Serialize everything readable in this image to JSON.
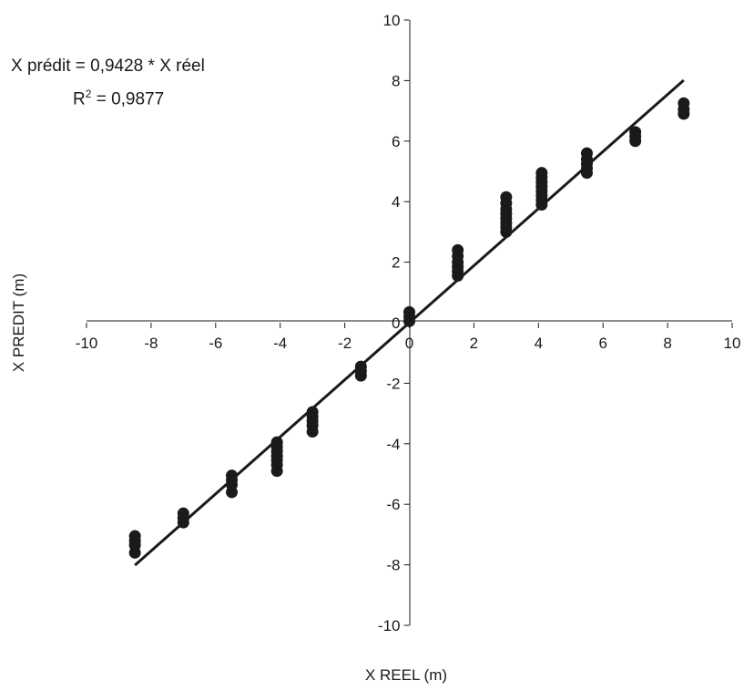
{
  "chart_data": {
    "type": "scatter",
    "xlabel": "X REEL (m)",
    "ylabel": "X PREDIT (m)",
    "xlim": [
      -10,
      10
    ],
    "ylim": [
      -10,
      10
    ],
    "x_ticks": [
      "-10",
      "-8",
      "-6",
      "-4",
      "-2",
      "0",
      "2",
      "4",
      "6",
      "8",
      "10"
    ],
    "y_ticks": [
      "10",
      "8",
      "6",
      "4",
      "2",
      "0",
      "-2",
      "-4",
      "-6",
      "-8",
      "-10"
    ],
    "grid": false,
    "annotations": {
      "equation": "X prédit = 0,9428 * X réel",
      "r2_label": "R",
      "r2_exponent": "2",
      "r2_value": " = 0,9877"
    },
    "trendline": {
      "slope": 0.9428,
      "intercept": 0,
      "x_range": [
        -8.5,
        8.5
      ]
    },
    "marker_color": "#1a1a1a",
    "points": [
      [
        -8.5,
        -7.05
      ],
      [
        -8.5,
        -7.2
      ],
      [
        -8.5,
        -7.35
      ],
      [
        -8.5,
        -7.6
      ],
      [
        -7.0,
        -6.3
      ],
      [
        -7.0,
        -6.45
      ],
      [
        -7.0,
        -6.6
      ],
      [
        -5.5,
        -5.05
      ],
      [
        -5.5,
        -5.2
      ],
      [
        -5.5,
        -5.35
      ],
      [
        -5.5,
        -5.6
      ],
      [
        -4.1,
        -3.95
      ],
      [
        -4.1,
        -4.1
      ],
      [
        -4.1,
        -4.25
      ],
      [
        -4.1,
        -4.4
      ],
      [
        -4.1,
        -4.55
      ],
      [
        -4.1,
        -4.7
      ],
      [
        -4.1,
        -4.9
      ],
      [
        -3.0,
        -2.95
      ],
      [
        -3.0,
        -3.1
      ],
      [
        -3.0,
        -3.25
      ],
      [
        -3.0,
        -3.4
      ],
      [
        -3.0,
        -3.6
      ],
      [
        -1.5,
        -1.45
      ],
      [
        -1.5,
        -1.6
      ],
      [
        -1.5,
        -1.75
      ],
      [
        0.0,
        0.35
      ],
      [
        0.0,
        0.2
      ],
      [
        0.0,
        0.05
      ],
      [
        1.5,
        1.55
      ],
      [
        1.5,
        1.7
      ],
      [
        1.5,
        1.85
      ],
      [
        1.5,
        2.0
      ],
      [
        1.5,
        2.2
      ],
      [
        1.5,
        2.4
      ],
      [
        3.0,
        3.0
      ],
      [
        3.0,
        3.15
      ],
      [
        3.0,
        3.3
      ],
      [
        3.0,
        3.45
      ],
      [
        3.0,
        3.6
      ],
      [
        3.0,
        3.75
      ],
      [
        3.0,
        3.95
      ],
      [
        3.0,
        4.15
      ],
      [
        4.1,
        3.9
      ],
      [
        4.1,
        4.05
      ],
      [
        4.1,
        4.2
      ],
      [
        4.1,
        4.35
      ],
      [
        4.1,
        4.5
      ],
      [
        4.1,
        4.65
      ],
      [
        4.1,
        4.8
      ],
      [
        4.1,
        4.95
      ],
      [
        5.5,
        4.95
      ],
      [
        5.5,
        5.1
      ],
      [
        5.5,
        5.25
      ],
      [
        5.5,
        5.4
      ],
      [
        5.5,
        5.6
      ],
      [
        7.0,
        6.0
      ],
      [
        7.0,
        6.15
      ],
      [
        7.0,
        6.3
      ],
      [
        8.5,
        6.9
      ],
      [
        8.5,
        7.05
      ],
      [
        8.5,
        7.25
      ]
    ]
  }
}
